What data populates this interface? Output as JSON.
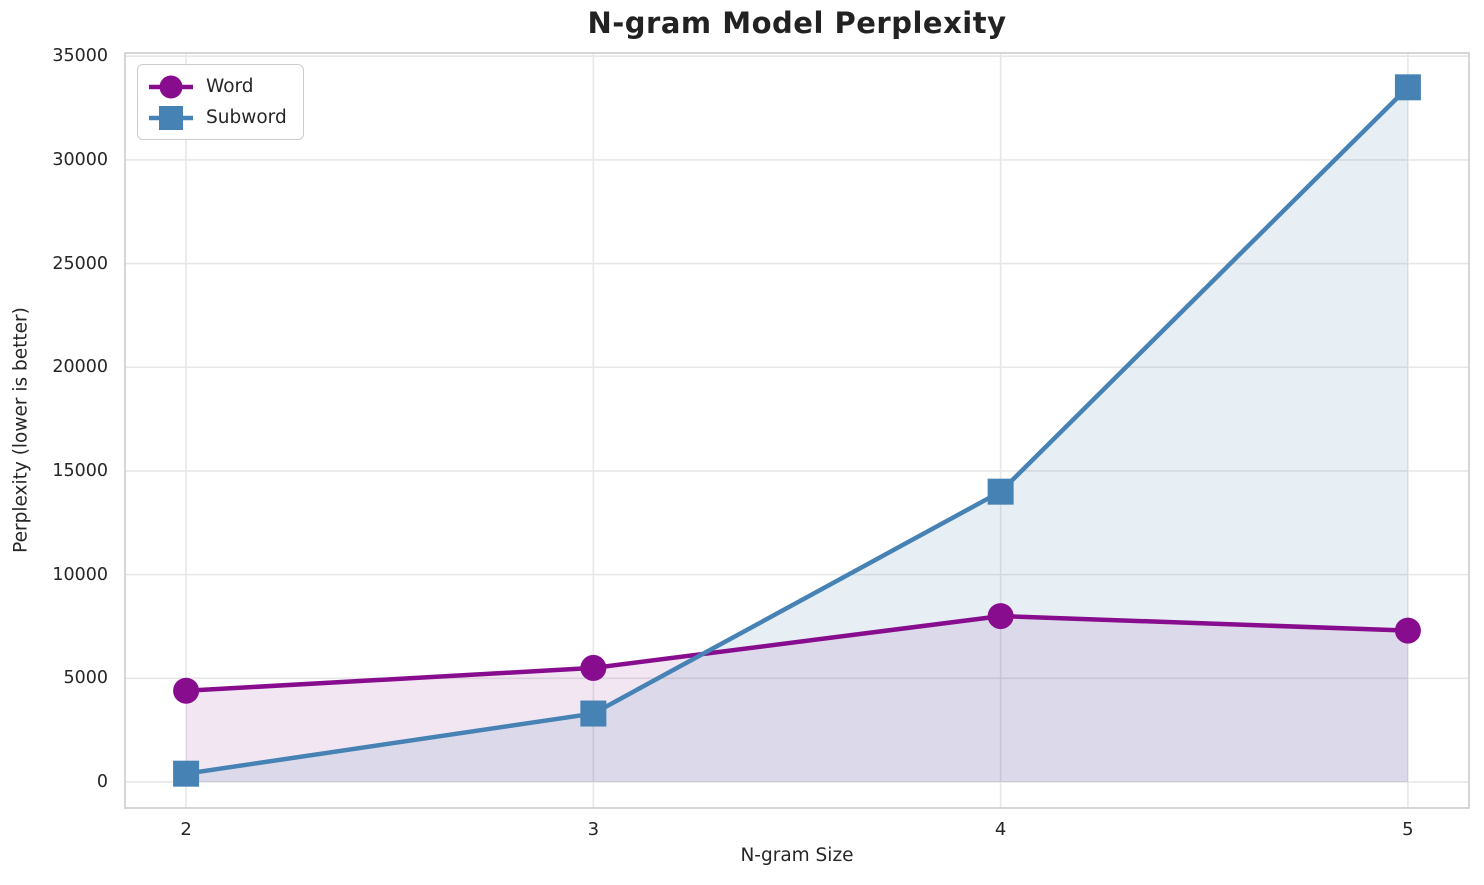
{
  "chart_data": {
    "type": "line",
    "title": "N-gram Model Perplexity",
    "xlabel": "N-gram Size",
    "ylabel": "Perplexity (lower is better)",
    "x": [
      2,
      3,
      4,
      5
    ],
    "xticks": [
      2,
      3,
      4,
      5
    ],
    "yticks": [
      0,
      5000,
      10000,
      15000,
      20000,
      25000,
      30000,
      35000
    ],
    "xlim": [
      1.85,
      5.15
    ],
    "ylim": [
      -1255,
      35155
    ],
    "grid": true,
    "legend": {
      "position": "upper left"
    },
    "series": [
      {
        "name": "Word",
        "marker": "circle",
        "color": "#870C8E",
        "fill_opacity": 0.1,
        "values": [
          4400,
          5500,
          8000,
          7300
        ]
      },
      {
        "name": "Subword",
        "marker": "square",
        "color": "#4682B4",
        "fill_opacity": 0.13,
        "values": [
          400,
          3300,
          14000,
          33500
        ]
      }
    ],
    "colors": {
      "background": "#ffffff",
      "grid": "#e7e7e7",
      "spine": "#cccccc",
      "text": "#262626"
    }
  }
}
